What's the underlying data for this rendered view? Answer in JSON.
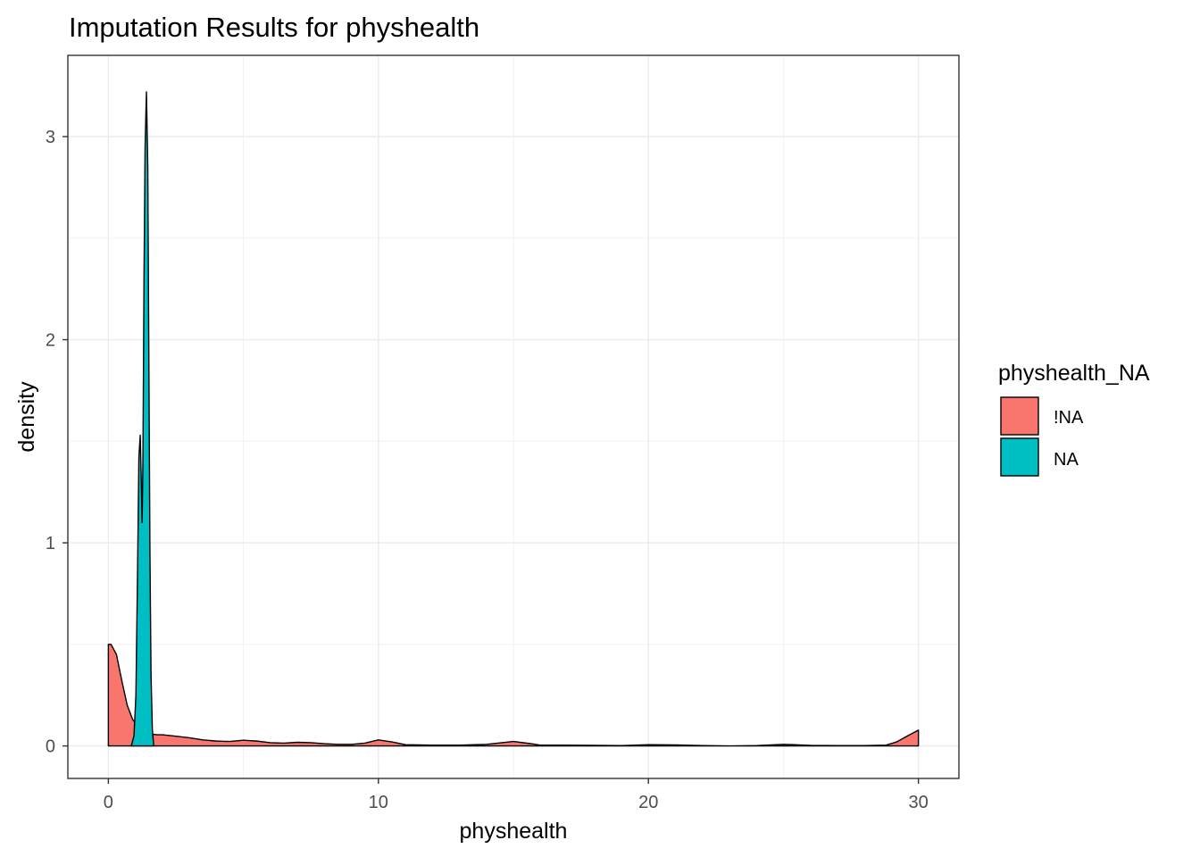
{
  "chart_data": {
    "type": "area",
    "title": "Imputation Results for physhealth",
    "xlabel": "physhealth",
    "ylabel": "density",
    "xlim": [
      -1.5,
      31.5
    ],
    "ylim": [
      -0.16,
      3.4
    ],
    "x_ticks": [
      0,
      10,
      20,
      30
    ],
    "y_ticks": [
      0,
      1,
      2,
      3
    ],
    "grid": true,
    "legend": {
      "title": "physhealth_NA",
      "position": "right",
      "entries": [
        {
          "label": "!NA",
          "color": "#F8766D"
        },
        {
          "label": "NA",
          "color": "#00BFC4"
        }
      ]
    },
    "series": [
      {
        "name": "!NA",
        "color": "#F8766D",
        "points": [
          [
            0,
            0.5
          ],
          [
            0.1,
            0.5
          ],
          [
            0.3,
            0.45
          ],
          [
            0.5,
            0.32
          ],
          [
            0.7,
            0.2
          ],
          [
            0.9,
            0.13
          ],
          [
            1.2,
            0.08
          ],
          [
            1.5,
            0.06
          ],
          [
            1.8,
            0.055
          ],
          [
            2.0,
            0.055
          ],
          [
            2.5,
            0.048
          ],
          [
            3.0,
            0.04
          ],
          [
            3.5,
            0.03
          ],
          [
            4.0,
            0.024
          ],
          [
            4.5,
            0.022
          ],
          [
            5.0,
            0.028
          ],
          [
            5.5,
            0.024
          ],
          [
            6.0,
            0.016
          ],
          [
            6.5,
            0.014
          ],
          [
            7.0,
            0.018
          ],
          [
            7.5,
            0.016
          ],
          [
            8.0,
            0.011
          ],
          [
            8.5,
            0.008
          ],
          [
            9.0,
            0.008
          ],
          [
            9.5,
            0.014
          ],
          [
            10.0,
            0.03
          ],
          [
            10.5,
            0.02
          ],
          [
            11.0,
            0.006
          ],
          [
            12.0,
            0.004
          ],
          [
            13.0,
            0.004
          ],
          [
            14.0,
            0.008
          ],
          [
            15.0,
            0.022
          ],
          [
            15.6,
            0.012
          ],
          [
            16.0,
            0.004
          ],
          [
            17.0,
            0.004
          ],
          [
            18.0,
            0.003
          ],
          [
            19.0,
            0.002
          ],
          [
            20.0,
            0.006
          ],
          [
            21.0,
            0.005
          ],
          [
            22.0,
            0.002
          ],
          [
            23.0,
            0.0
          ],
          [
            24.0,
            0.002
          ],
          [
            25.0,
            0.008
          ],
          [
            26.0,
            0.003
          ],
          [
            27.0,
            0.002
          ],
          [
            28.0,
            0.002
          ],
          [
            28.8,
            0.004
          ],
          [
            29.2,
            0.02
          ],
          [
            29.6,
            0.05
          ],
          [
            30.0,
            0.078
          ]
        ]
      },
      {
        "name": "NA",
        "color": "#00BFC4",
        "points": [
          [
            0.85,
            0.0
          ],
          [
            0.95,
            0.05
          ],
          [
            1.02,
            0.25
          ],
          [
            1.08,
            0.85
          ],
          [
            1.13,
            1.42
          ],
          [
            1.18,
            1.53
          ],
          [
            1.22,
            1.3
          ],
          [
            1.25,
            1.1
          ],
          [
            1.28,
            1.4
          ],
          [
            1.32,
            2.3
          ],
          [
            1.36,
            2.95
          ],
          [
            1.41,
            3.22
          ],
          [
            1.46,
            2.85
          ],
          [
            1.5,
            1.9
          ],
          [
            1.54,
            0.95
          ],
          [
            1.58,
            0.35
          ],
          [
            1.63,
            0.08
          ],
          [
            1.68,
            0.0
          ]
        ]
      }
    ]
  }
}
